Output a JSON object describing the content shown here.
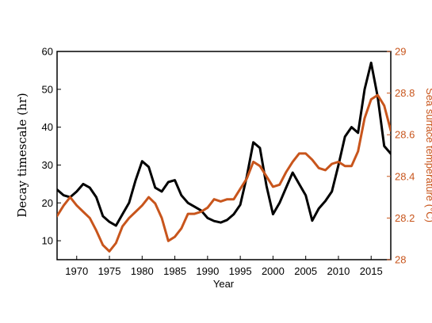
{
  "chart_data": {
    "type": "line",
    "title": "",
    "xlabel": "Year",
    "ylabel_left": "Decay timescale (hr)",
    "ylabel_right": "Sea surface temperature (°C)",
    "xlim": [
      1967,
      2018
    ],
    "ylim_left": [
      5,
      60
    ],
    "ylim_right": [
      28,
      29
    ],
    "grid": false,
    "x_ticks": [
      1970,
      1975,
      1980,
      1985,
      1990,
      1995,
      2000,
      2005,
      2010,
      2015
    ],
    "y_ticks_left": [
      10,
      20,
      30,
      40,
      50,
      60
    ],
    "y_ticks_right": [
      28,
      28.2,
      28.4,
      28.6,
      28.8,
      29
    ],
    "y_tick_labels_right": [
      "28",
      "28.2",
      "28.4",
      "28.6",
      "28.8",
      "29"
    ],
    "colors": {
      "decay": "#000000",
      "sst": "#c8551c"
    },
    "x": [
      1967,
      1968,
      1969,
      1970,
      1971,
      1972,
      1973,
      1974,
      1975,
      1976,
      1977,
      1978,
      1979,
      1980,
      1981,
      1982,
      1983,
      1984,
      1985,
      1986,
      1987,
      1988,
      1989,
      1990,
      1991,
      1992,
      1993,
      1994,
      1995,
      1996,
      1997,
      1998,
      1999,
      2000,
      2001,
      2002,
      2003,
      2004,
      2005,
      2006,
      2007,
      2008,
      2009,
      2010,
      2011,
      2012,
      2013,
      2014,
      2015,
      2016,
      2017,
      2018
    ],
    "series": [
      {
        "axis": "left",
        "color": "#000000",
        "values": [
          23.5,
          22,
          21.5,
          23,
          25,
          24,
          21.5,
          16.5,
          15,
          14,
          17,
          20,
          26,
          31,
          29.5,
          24,
          23,
          25.5,
          26,
          22,
          20,
          19,
          18,
          16,
          15.2,
          14.8,
          15.5,
          17,
          19.5,
          27,
          36,
          34.5,
          24.5,
          17,
          20,
          24,
          28,
          25,
          22,
          15.3,
          18.5,
          20.5,
          23,
          30,
          37.5,
          40,
          38.5,
          50,
          57,
          48,
          35,
          33
        ]
      },
      {
        "axis": "right",
        "color": "#c8551c",
        "values": [
          28.21,
          28.26,
          28.3,
          28.26,
          28.23,
          28.2,
          28.14,
          28.07,
          28.04,
          28.08,
          28.16,
          28.2,
          28.23,
          28.26,
          28.3,
          28.27,
          28.2,
          28.09,
          28.11,
          28.15,
          28.22,
          28.22,
          28.23,
          28.25,
          28.29,
          28.28,
          28.29,
          28.29,
          28.34,
          28.39,
          28.47,
          28.45,
          28.4,
          28.35,
          28.36,
          28.42,
          28.47,
          28.51,
          28.51,
          28.48,
          28.44,
          28.43,
          28.46,
          28.47,
          28.45,
          28.45,
          28.52,
          28.68,
          28.77,
          28.79,
          28.74,
          28.62
        ]
      }
    ]
  }
}
